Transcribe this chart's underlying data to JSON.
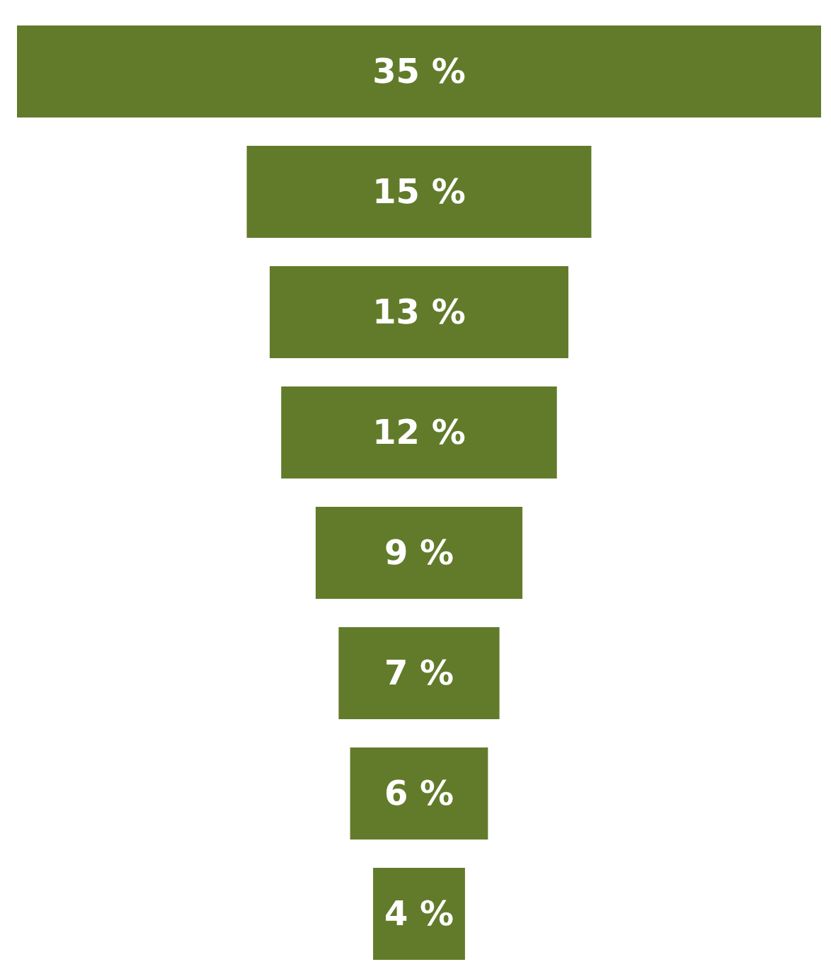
{
  "chart_data": {
    "type": "other",
    "categories": [
      null,
      null,
      null,
      null,
      null,
      null,
      null,
      null
    ],
    "values": [
      35,
      15,
      13,
      12,
      9,
      7,
      6,
      4
    ],
    "value_labels": [
      "35 %",
      "15 %",
      "13 %",
      "12 %",
      "9 %",
      "7 %",
      "6 %",
      "4 %"
    ],
    "color": "#627b2a"
  }
}
